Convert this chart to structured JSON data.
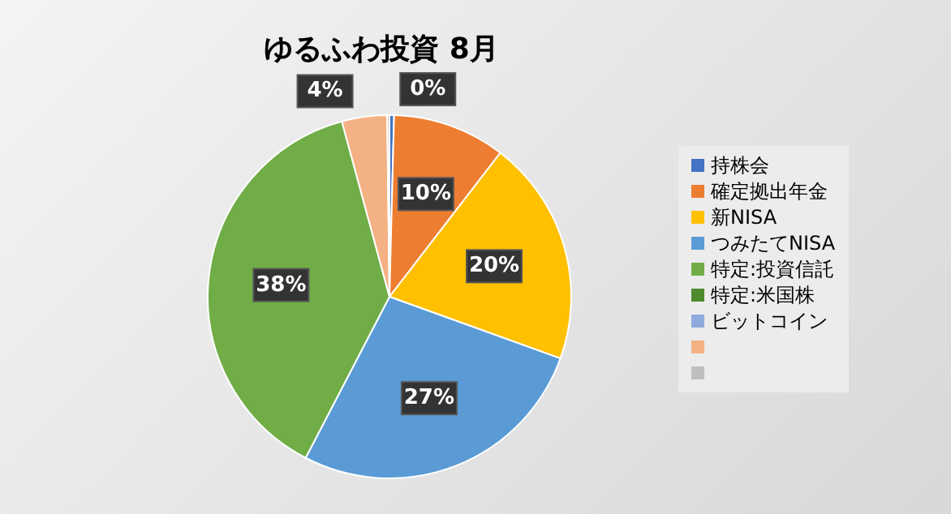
{
  "chart_data": {
    "type": "pie",
    "title": "ゆるふわ投資 8月",
    "categories": [
      "持株会",
      "確定拠出年金",
      "新NISA",
      "つみたてNISA",
      "特定:投資信託",
      "特定:米国株",
      "ビットコイン",
      null,
      null
    ],
    "values": [
      0.4,
      10,
      20,
      27,
      38,
      null,
      null,
      4,
      0.2
    ],
    "colors": [
      "#4472c4",
      "#ed7d31",
      "#ffc000",
      "#5b9bd5",
      "#70ad47",
      "#4e8a2e",
      "#8faadc",
      "#f4b183",
      "#bfbfbf"
    ],
    "value_labels": [
      "0%",
      "10%",
      "20%",
      "27%",
      "38%",
      null,
      null,
      "4%",
      null
    ],
    "legend": "right"
  }
}
